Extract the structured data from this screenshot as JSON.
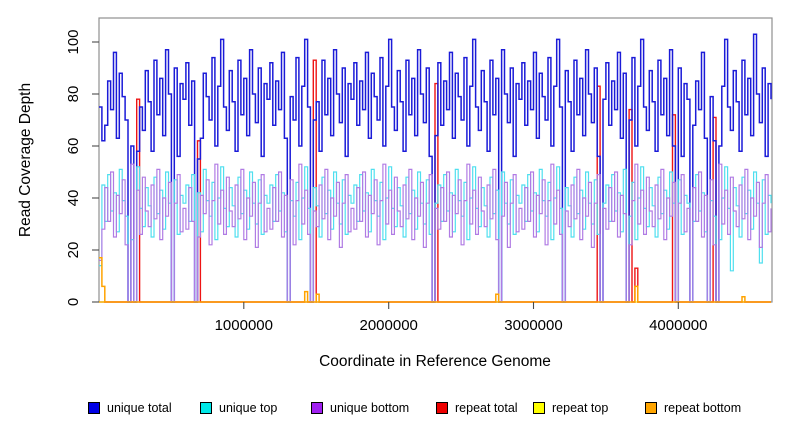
{
  "chart_data": {
    "type": "line",
    "subtype": "step-coverage",
    "title": "",
    "xlabel": "Coordinate in Reference Genome",
    "ylabel": "Read Coverage Depth",
    "x_start": 0,
    "x_step": 20000,
    "n_points": 233,
    "x_range": [
      0,
      4640000
    ],
    "y_range": [
      0,
      109
    ],
    "x_ticks": [
      1000000,
      2000000,
      3000000,
      4000000
    ],
    "y_ticks": [
      0,
      20,
      40,
      60,
      80,
      100
    ],
    "grid": false,
    "frame_color": "#8f8f8f",
    "tick_color": "#4a4a4a",
    "legend_position": "bottom",
    "legend_offsets": [
      88,
      200,
      311,
      436,
      533,
      645
    ],
    "draw_order": [
      3,
      0,
      1,
      2,
      4,
      5
    ],
    "series": [
      {
        "name": "unique total",
        "color": "#1b1bd8",
        "legend_color": "#0000e6",
        "width": 1.5,
        "values": [
          75,
          62,
          68,
          85,
          74,
          96,
          63,
          88,
          79,
          70,
          0,
          60,
          0,
          58,
          75,
          66,
          89,
          77,
          58,
          93,
          72,
          86,
          64,
          97,
          80,
          0,
          90,
          56,
          84,
          78,
          92,
          68,
          85,
          0,
          55,
          63,
          88,
          79,
          70,
          94,
          60,
          83,
          101,
          75,
          66,
          89,
          77,
          58,
          93,
          72,
          86,
          64,
          97,
          80,
          69,
          90,
          56,
          84,
          78,
          92,
          68,
          85,
          74,
          96,
          63,
          0,
          79,
          70,
          94,
          60,
          83,
          101,
          75,
          0,
          70,
          77,
          58,
          93,
          72,
          86,
          64,
          97,
          80,
          69,
          90,
          56,
          84,
          78,
          92,
          68,
          85,
          74,
          96,
          63,
          88,
          79,
          70,
          94,
          60,
          83,
          101,
          75,
          66,
          89,
          77,
          58,
          93,
          72,
          86,
          64,
          97,
          80,
          69,
          90,
          56,
          0,
          64,
          92,
          68,
          85,
          74,
          96,
          63,
          88,
          79,
          70,
          94,
          60,
          83,
          101,
          75,
          66,
          89,
          77,
          58,
          93,
          72,
          86,
          0,
          97,
          80,
          69,
          90,
          56,
          84,
          78,
          92,
          68,
          85,
          74,
          96,
          63,
          88,
          79,
          70,
          94,
          60,
          83,
          101,
          75,
          0,
          89,
          77,
          58,
          93,
          72,
          86,
          64,
          97,
          80,
          69,
          90,
          56,
          0,
          78,
          92,
          68,
          85,
          74,
          96,
          63,
          88,
          0,
          70,
          94,
          60,
          83,
          101,
          75,
          66,
          89,
          77,
          58,
          93,
          72,
          86,
          64,
          97,
          60,
          0,
          90,
          56,
          84,
          78,
          0,
          68,
          85,
          74,
          96,
          63,
          0,
          79,
          62,
          0,
          60,
          83,
          101,
          75,
          66,
          89,
          77,
          58,
          93,
          72,
          86,
          64,
          103,
          80,
          69,
          90,
          56,
          84,
          78
        ]
      },
      {
        "name": "unique top",
        "color": "#4fdfef",
        "legend_color": "#00e8e8",
        "width": 1.2,
        "values": [
          14,
          45,
          31,
          49,
          35,
          42,
          27,
          51,
          39,
          33,
          0,
          24,
          0,
          52,
          36,
          29,
          44,
          37,
          25,
          48,
          34,
          43,
          28,
          50,
          38,
          0,
          47,
          26,
          41,
          38,
          45,
          31,
          49,
          0,
          42,
          27,
          51,
          39,
          33,
          46,
          24,
          40,
          52,
          36,
          29,
          44,
          37,
          25,
          48,
          34,
          43,
          28,
          50,
          38,
          30,
          47,
          26,
          41,
          38,
          45,
          31,
          49,
          35,
          42,
          27,
          0,
          39,
          33,
          46,
          24,
          40,
          52,
          36,
          0,
          44,
          37,
          25,
          48,
          34,
          43,
          28,
          50,
          38,
          30,
          47,
          26,
          41,
          38,
          45,
          31,
          49,
          35,
          42,
          27,
          51,
          39,
          33,
          46,
          24,
          40,
          52,
          36,
          29,
          44,
          37,
          25,
          48,
          34,
          43,
          28,
          50,
          38,
          30,
          47,
          26,
          0,
          38,
          45,
          31,
          49,
          35,
          42,
          27,
          51,
          39,
          33,
          46,
          24,
          40,
          52,
          36,
          29,
          44,
          37,
          25,
          48,
          34,
          43,
          0,
          50,
          38,
          30,
          47,
          26,
          41,
          38,
          45,
          31,
          49,
          35,
          42,
          27,
          51,
          39,
          33,
          46,
          24,
          40,
          52,
          36,
          0,
          44,
          37,
          25,
          48,
          34,
          43,
          28,
          50,
          38,
          30,
          47,
          26,
          0,
          38,
          45,
          31,
          49,
          35,
          42,
          27,
          51,
          0,
          33,
          46,
          24,
          40,
          52,
          36,
          29,
          44,
          37,
          25,
          48,
          34,
          43,
          28,
          50,
          38,
          0,
          47,
          26,
          41,
          38,
          0,
          31,
          49,
          35,
          42,
          27,
          0,
          39,
          33,
          0,
          24,
          40,
          52,
          36,
          12,
          44,
          37,
          25,
          48,
          34,
          43,
          28,
          50,
          38,
          15,
          47,
          26,
          41,
          38
        ]
      },
      {
        "name": "unique bottom",
        "color": "#b07be4",
        "legend_color": "#a020f0",
        "width": 1.2,
        "values": [
          16,
          28,
          44,
          31,
          50,
          25,
          41,
          34,
          47,
          22,
          0,
          53,
          0,
          43,
          26,
          48,
          35,
          29,
          45,
          32,
          51,
          24,
          40,
          33,
          46,
          0,
          38,
          49,
          27,
          36,
          28,
          44,
          31,
          0,
          25,
          41,
          34,
          47,
          22,
          39,
          53,
          30,
          43,
          26,
          48,
          35,
          29,
          45,
          32,
          51,
          24,
          40,
          33,
          46,
          21,
          38,
          49,
          27,
          36,
          28,
          44,
          31,
          50,
          25,
          41,
          0,
          47,
          22,
          39,
          53,
          30,
          43,
          26,
          0,
          35,
          29,
          45,
          32,
          51,
          24,
          40,
          33,
          46,
          21,
          38,
          49,
          27,
          36,
          28,
          44,
          31,
          50,
          25,
          41,
          34,
          47,
          22,
          39,
          53,
          30,
          43,
          26,
          48,
          35,
          29,
          45,
          32,
          51,
          24,
          40,
          33,
          46,
          21,
          38,
          49,
          0,
          36,
          28,
          44,
          31,
          50,
          25,
          41,
          34,
          47,
          22,
          39,
          53,
          30,
          43,
          26,
          48,
          35,
          29,
          45,
          32,
          51,
          24,
          0,
          33,
          46,
          21,
          38,
          49,
          27,
          36,
          28,
          44,
          31,
          50,
          25,
          41,
          34,
          47,
          22,
          39,
          53,
          30,
          43,
          26,
          0,
          35,
          29,
          45,
          32,
          51,
          24,
          40,
          33,
          46,
          21,
          38,
          49,
          0,
          36,
          28,
          44,
          31,
          50,
          25,
          41,
          34,
          0,
          22,
          39,
          53,
          30,
          43,
          26,
          48,
          35,
          29,
          45,
          32,
          51,
          24,
          40,
          33,
          46,
          0,
          38,
          49,
          27,
          36,
          0,
          44,
          31,
          50,
          25,
          41,
          0,
          47,
          22,
          0,
          53,
          30,
          43,
          26,
          48,
          35,
          29,
          45,
          32,
          51,
          24,
          40,
          33,
          46,
          21,
          38,
          49,
          27,
          36
        ]
      },
      {
        "name": "repeat total",
        "color": "#ee1414",
        "legend_color": "#ee0000",
        "width": 1.4,
        "baseline": 0,
        "spikes": {
          "13": 78,
          "34": 62,
          "74": 93,
          "116": 84,
          "172": 83,
          "183": 74,
          "185": 13,
          "198": 72,
          "212": 71
        }
      },
      {
        "name": "repeat top",
        "color": "#ffff00",
        "legend_color": "#ffff00",
        "width": 1.1,
        "baseline": 0,
        "spikes": {}
      },
      {
        "name": "repeat bottom",
        "color": "#ffa300",
        "legend_color": "#ffa500",
        "width": 1.5,
        "baseline": 0,
        "spikes": {
          "0": 17,
          "1": 6,
          "71": 4,
          "75": 3,
          "137": 3,
          "185": 6,
          "222": 2
        }
      }
    ]
  }
}
